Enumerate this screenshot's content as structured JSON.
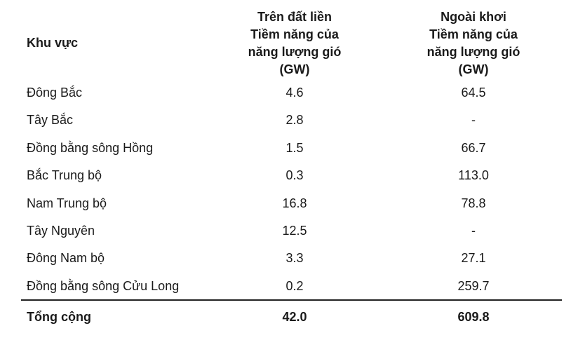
{
  "table": {
    "header": [
      [
        "Khu vực"
      ],
      [
        "Trên đất liền",
        "Tiềm năng của",
        "năng lượng gió",
        "(GW)"
      ],
      [
        "Ngoài khơi",
        "Tiềm năng của",
        "năng lượng gió",
        "(GW)"
      ]
    ],
    "rows": [
      [
        "Đông Bắc",
        "4.6",
        "64.5"
      ],
      [
        "Tây Bắc",
        "2.8",
        "-"
      ],
      [
        "Đồng bằng sông Hồng",
        "1.5",
        "66.7"
      ],
      [
        "Bắc Trung bộ",
        "0.3",
        "113.0"
      ],
      [
        "Nam Trung bộ",
        "16.8",
        "78.8"
      ],
      [
        "Tây Nguyên",
        "12.5",
        "-"
      ],
      [
        "Đông Nam bộ",
        "3.3",
        "27.1"
      ],
      [
        "Đồng bằng sông Cửu Long",
        "0.2",
        "259.7"
      ]
    ],
    "total": [
      "Tổng cộng",
      "42.0",
      "609.8"
    ]
  }
}
